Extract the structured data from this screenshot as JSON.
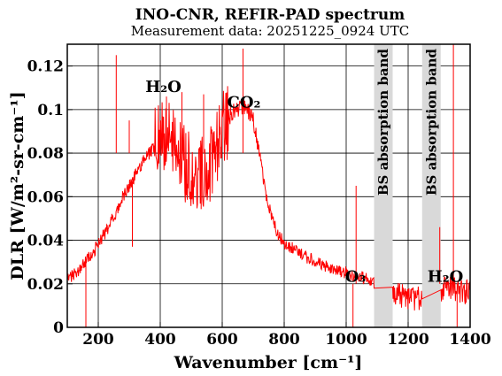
{
  "chart_data": {
    "type": "line",
    "title": "INO-CNR, REFIR-PAD spectrum",
    "subtitle": "Measurement data: 20251225_0924 UTC",
    "xlabel": "Wavenumber [cm⁻¹]",
    "ylabel": "DLR [W/m²-sr-cm⁻¹]",
    "xlim": [
      100,
      1400
    ],
    "ylim": [
      0,
      0.13
    ],
    "x_ticks": [
      200,
      400,
      600,
      800,
      1000,
      1200,
      1400
    ],
    "y_ticks": [
      0,
      0.02,
      0.04,
      0.06,
      0.08,
      0.1,
      0.12
    ],
    "y_tick_labels": [
      "0",
      "0.02",
      "0.04",
      "0.06",
      "0.08",
      "0.1",
      "0.12"
    ],
    "grid": true,
    "line_color": "#ff0000",
    "band_color": "#d9d9d9",
    "series": [
      {
        "x": [
          100,
          120,
          140,
          160,
          180,
          200,
          220,
          240,
          260,
          280,
          300,
          320,
          340,
          360,
          380,
          400,
          420,
          440,
          460,
          480,
          500,
          520,
          540,
          560,
          580,
          600,
          620,
          640,
          660,
          680,
          700,
          720,
          740,
          760,
          780,
          800,
          830,
          860,
          900,
          950,
          1000,
          1050,
          1090,
          1150,
          1200,
          1250,
          1290,
          1320,
          1340,
          1360,
          1400
        ],
        "y": [
          0.022,
          0.024,
          0.027,
          0.03,
          0.034,
          0.038,
          0.043,
          0.048,
          0.054,
          0.06,
          0.065,
          0.07,
          0.075,
          0.079,
          0.083,
          0.086,
          0.087,
          0.085,
          0.08,
          0.075,
          0.07,
          0.068,
          0.07,
          0.075,
          0.083,
          0.09,
          0.096,
          0.1,
          0.101,
          0.1,
          0.095,
          0.08,
          0.062,
          0.05,
          0.043,
          0.039,
          0.036,
          0.033,
          0.03,
          0.027,
          0.025,
          0.023,
          0.021,
          0.016,
          0.014,
          0.013,
          0.016,
          0.019,
          0.018,
          0.017,
          0.016
        ]
      }
    ],
    "spikes": [
      {
        "x": 160,
        "y": 0.0
      },
      {
        "x": 258,
        "y": 0.125
      },
      {
        "x": 300,
        "y": 0.095
      },
      {
        "x": 310,
        "y": 0.037
      },
      {
        "x": 420,
        "y": 0.106
      },
      {
        "x": 470,
        "y": 0.108
      },
      {
        "x": 540,
        "y": 0.107
      },
      {
        "x": 667,
        "y": 0.128
      },
      {
        "x": 1022,
        "y": 0.0
      },
      {
        "x": 1032,
        "y": 0.065
      },
      {
        "x": 1302,
        "y": 0.046
      },
      {
        "x": 1346,
        "y": 0.13
      },
      {
        "x": 1358,
        "y": 0.0
      }
    ],
    "annotations": [
      {
        "text": "H₂O",
        "x": 410,
        "y": 0.108
      },
      {
        "text": "CO₂",
        "x": 670,
        "y": 0.101
      },
      {
        "text": "O₃",
        "x": 1030,
        "y": 0.021
      },
      {
        "text": "H₂O",
        "x": 1320,
        "y": 0.021
      }
    ],
    "bands": [
      {
        "label": "BS absorption band",
        "x_start": 1090,
        "x_end": 1150
      },
      {
        "label": "BS absorption band",
        "x_start": 1245,
        "x_end": 1305
      }
    ]
  }
}
